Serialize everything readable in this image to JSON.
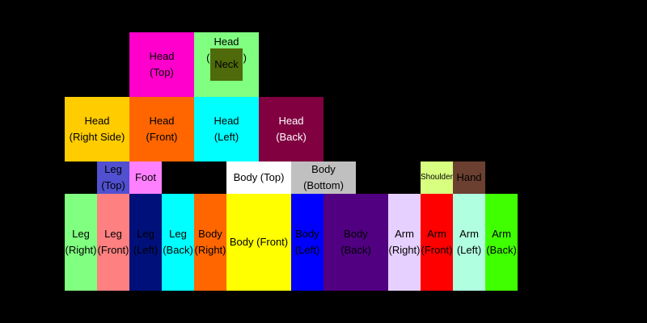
{
  "parts": {
    "head_top": {
      "line1": "Head",
      "line2": "(Top)",
      "color": "#ff00cc"
    },
    "head_bottom": {
      "label": "Head (Bottom)",
      "color": "#80ff80"
    },
    "neck": {
      "label": "Neck",
      "color": "#4f6a0a"
    },
    "head_right": {
      "line1": "Head",
      "line2": "(Right Side)",
      "color": "#ffcc00"
    },
    "head_front": {
      "line1": "Head",
      "line2": "(Front)",
      "color": "#ff6600"
    },
    "head_left": {
      "line1": "Head",
      "line2": "(Left)",
      "color": "#00ffff"
    },
    "head_back": {
      "line1": "Head",
      "line2": "(Back)",
      "color": "#800040"
    },
    "leg_top": {
      "line1": "Leg",
      "line2": "(Top)",
      "color": "#5050d0"
    },
    "foot": {
      "label": "Foot",
      "color": "#ff80ff"
    },
    "body_top": {
      "label": "Body (Top)",
      "color": "#ffffff"
    },
    "body_bottom": {
      "line1": "Body",
      "line2": "(Bottom)",
      "color": "#c0c0c0"
    },
    "shoulder": {
      "label": "Shoulder",
      "color": "#d8ff80"
    },
    "hand": {
      "label": "Hand",
      "color": "#6b4030"
    },
    "leg_right": {
      "line1": "Leg",
      "line2": "(Right)",
      "color": "#80ff80"
    },
    "leg_front": {
      "line1": "Leg",
      "line2": "(Front)",
      "color": "#ff8080"
    },
    "leg_left": {
      "line1": "Leg",
      "line2": "(Left)",
      "color": "#00107a"
    },
    "leg_back": {
      "line1": "Leg",
      "line2": "(Back)",
      "color": "#00ffff"
    },
    "body_right": {
      "line1": "Body",
      "line2": "(Right)",
      "color": "#ff6600"
    },
    "body_front": {
      "label": "Body (Front)",
      "color": "#ffff00"
    },
    "body_left": {
      "line1": "Body",
      "line2": "(Left)",
      "color": "#0000ff"
    },
    "body_back": {
      "line1": "Body",
      "line2": "(Back)",
      "color": "#500080"
    },
    "arm_right": {
      "line1": "Arm",
      "line2": "(Right)",
      "color": "#e6d0ff"
    },
    "arm_front": {
      "line1": "Arm",
      "line2": "(Front)",
      "color": "#ff0000"
    },
    "arm_left": {
      "line1": "Arm",
      "line2": "(Left)",
      "color": "#b0ffe0"
    },
    "arm_back": {
      "line1": "Arm",
      "line2": "(Back)",
      "color": "#40ff00"
    }
  }
}
